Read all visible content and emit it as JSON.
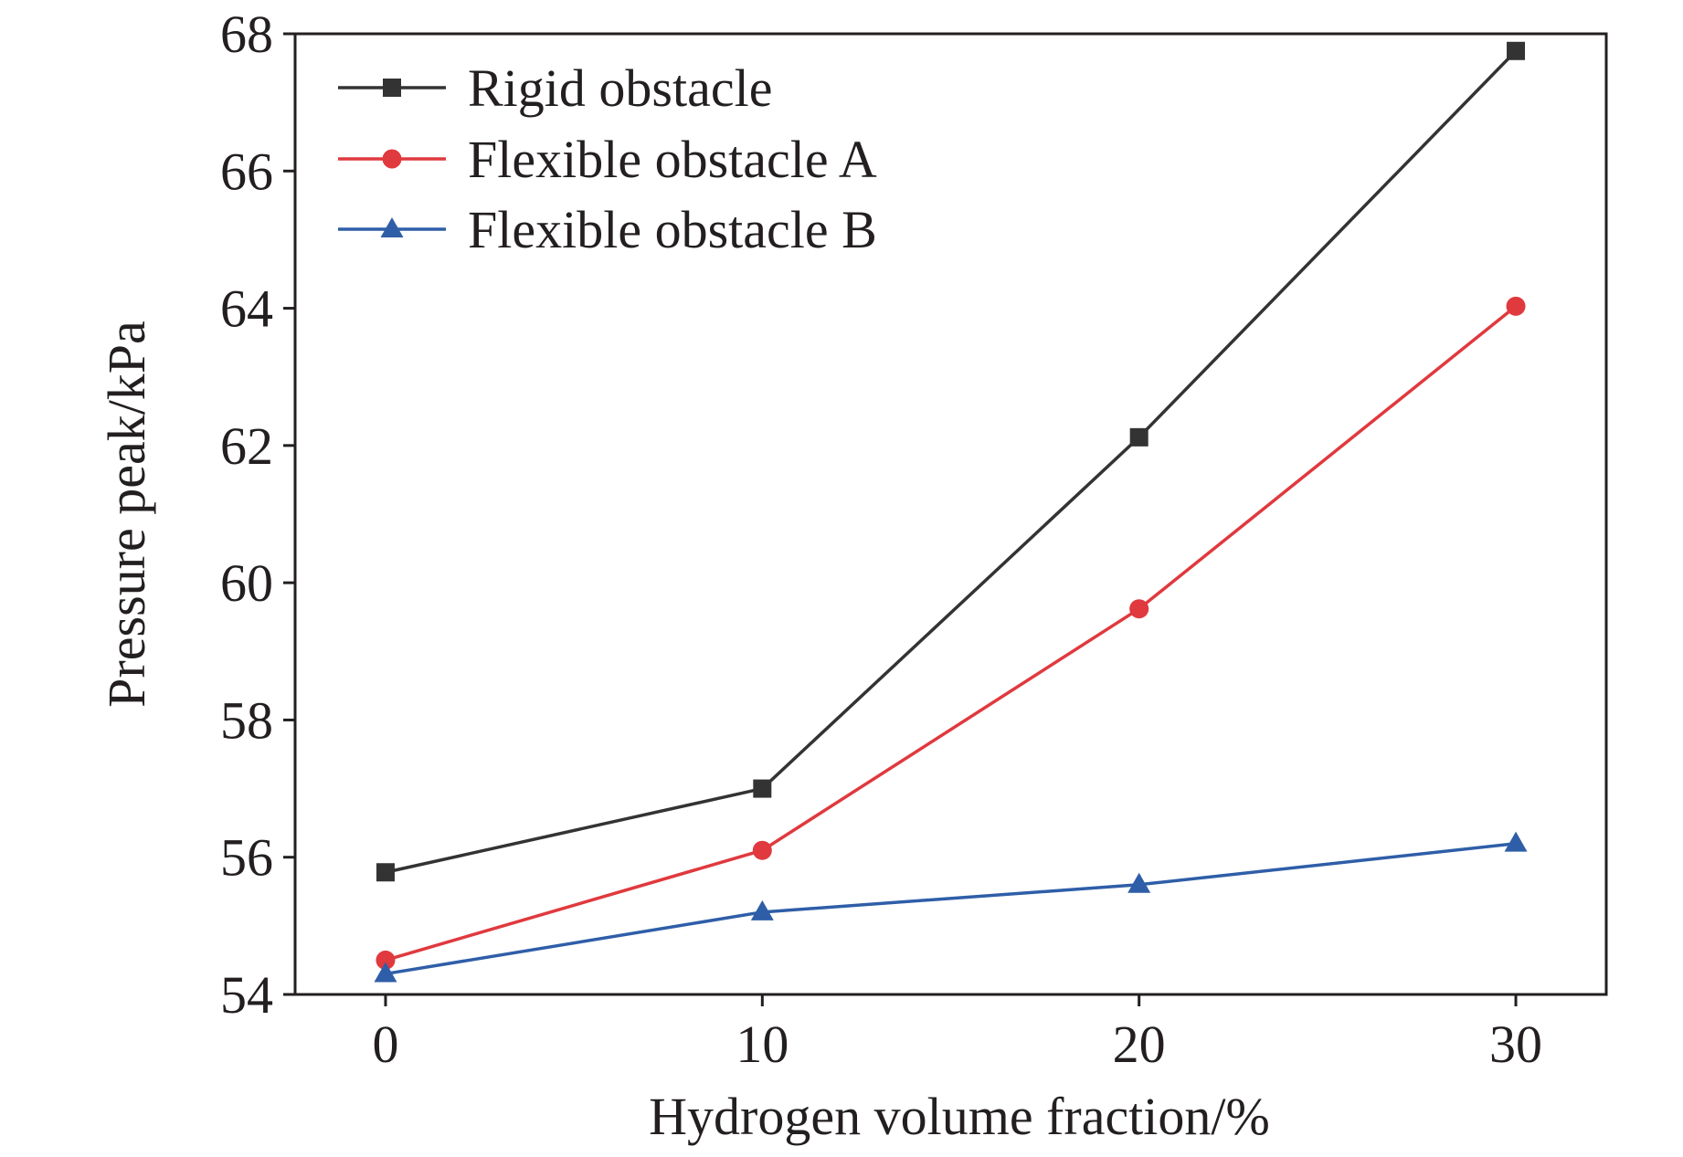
{
  "chart_data": {
    "type": "line",
    "title": "",
    "xlabel": "Hydrogen volume fraction/%",
    "ylabel": "Pressure peak/kPa",
    "x": [
      0,
      10,
      20,
      30
    ],
    "xticks": [
      0,
      10,
      20,
      30
    ],
    "xlim": [
      -2.4,
      32.4
    ],
    "ylim": [
      54,
      68
    ],
    "yticks": [
      54,
      56,
      58,
      60,
      62,
      64,
      66,
      68
    ],
    "grid": false,
    "legend_position": "top-left",
    "series": [
      {
        "name": "Rigid obstacle",
        "values": [
          55.78,
          57.0,
          62.12,
          67.75
        ],
        "color": "#333333",
        "marker": "square"
      },
      {
        "name": "Flexible obstacle A",
        "values": [
          54.5,
          56.1,
          59.62,
          64.03
        ],
        "color": "#e0393e",
        "marker": "circle"
      },
      {
        "name": "Flexible obstacle B",
        "values": [
          54.3,
          55.2,
          55.6,
          56.2
        ],
        "color": "#2f5ea8",
        "marker": "triangle"
      }
    ]
  }
}
